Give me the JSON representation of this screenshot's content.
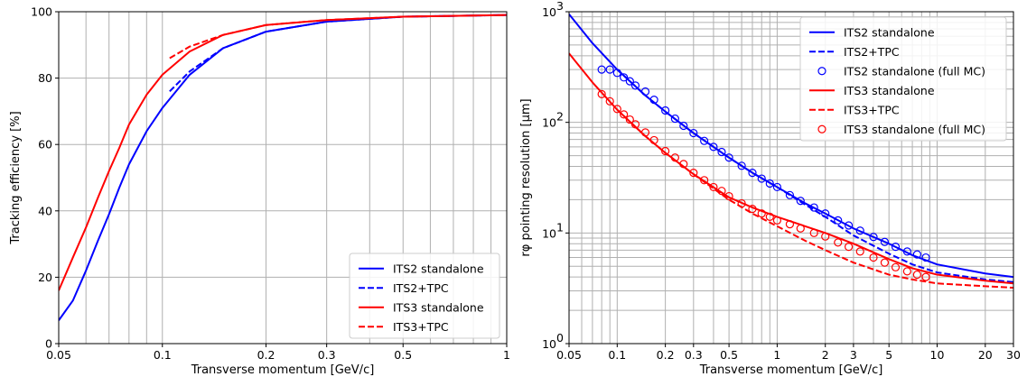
{
  "chart_data": [
    {
      "type": "line",
      "xscale": "log",
      "xlim": [
        0.05,
        1
      ],
      "ylim": [
        0,
        100
      ],
      "xlabel": "Transverse momentum [GeV/c]",
      "ylabel": "Tracking efficiency [%]",
      "xticks": [
        0.05,
        0.1,
        0.2,
        0.3,
        0.5,
        1
      ],
      "xtick_labels": [
        "0.05",
        "0.1",
        "0.2",
        "0.3",
        "0.5",
        "1"
      ],
      "yticks": [
        0,
        20,
        40,
        60,
        80,
        100
      ],
      "ytick_labels": [
        "0",
        "20",
        "40",
        "60",
        "80",
        "100"
      ],
      "grid": true,
      "legend_position": "bottom-right",
      "series": [
        {
          "name": "ITS2 standalone",
          "color": "#0000ff",
          "style": "solid",
          "x": [
            0.05,
            0.055,
            0.06,
            0.065,
            0.07,
            0.075,
            0.08,
            0.09,
            0.1,
            0.12,
            0.15,
            0.2,
            0.3,
            0.5,
            1.0
          ],
          "y": [
            7,
            13,
            22,
            31,
            39,
            47,
            54,
            64,
            71,
            81,
            89,
            94,
            97,
            98.5,
            99
          ]
        },
        {
          "name": "ITS2+TPC",
          "color": "#0000ff",
          "style": "dashed",
          "x": [
            0.105,
            0.12,
            0.15,
            0.2,
            0.3,
            0.5,
            1.0
          ],
          "y": [
            76,
            82,
            89,
            94,
            97,
            98.5,
            99
          ]
        },
        {
          "name": "ITS3 standalone",
          "color": "#ff0000",
          "style": "solid",
          "x": [
            0.05,
            0.055,
            0.06,
            0.065,
            0.07,
            0.075,
            0.08,
            0.09,
            0.1,
            0.12,
            0.15,
            0.2,
            0.3,
            0.5,
            1.0
          ],
          "y": [
            16,
            26,
            35,
            44,
            52,
            59,
            66,
            75,
            81,
            88,
            93,
            96,
            97.5,
            98.5,
            99
          ]
        },
        {
          "name": "ITS3+TPC",
          "color": "#ff0000",
          "style": "dashed",
          "x": [
            0.105,
            0.12,
            0.15,
            0.2,
            0.3,
            0.5,
            1.0
          ],
          "y": [
            86,
            89.5,
            93,
            96,
            97.5,
            98.5,
            99
          ]
        }
      ]
    },
    {
      "type": "line",
      "xscale": "log",
      "yscale": "log",
      "xlim": [
        0.05,
        30
      ],
      "ylim": [
        1,
        1000
      ],
      "xlabel": "Transverse momentum [GeV/c]",
      "ylabel": "rφ pointing resolution [µm]",
      "xticks": [
        0.05,
        0.1,
        0.2,
        0.3,
        0.5,
        1,
        2,
        3,
        5,
        10,
        20,
        30
      ],
      "xtick_labels": [
        "0.05",
        "0.1",
        "0.2",
        "0.3",
        "0.5",
        "1",
        "2",
        "3",
        "5",
        "10",
        "20",
        "30"
      ],
      "yticks": [
        1,
        10,
        100,
        1000
      ],
      "ytick_labels": [
        "10",
        "10",
        "10",
        "10"
      ],
      "ytick_exponents": [
        "0",
        "1",
        "2",
        "3"
      ],
      "grid": true,
      "legend_position": "top-right",
      "series": [
        {
          "name": "ITS2 standalone",
          "color": "#0000ff",
          "style": "solid",
          "x": [
            0.05,
            0.07,
            0.1,
            0.15,
            0.2,
            0.3,
            0.5,
            0.7,
            1,
            1.5,
            2,
            3,
            5,
            7,
            10,
            20,
            30
          ],
          "y": [
            950,
            520,
            300,
            175,
            125,
            80,
            48,
            35,
            26,
            18.5,
            15,
            11,
            8,
            6.3,
            5.2,
            4.3,
            4.0
          ]
        },
        {
          "name": "ITS2+TPC",
          "color": "#0000ff",
          "style": "dashed",
          "x": [
            0.1,
            0.15,
            0.2,
            0.3,
            0.5,
            0.7,
            1,
            1.5,
            2,
            3,
            5,
            7,
            10,
            20,
            30
          ],
          "y": [
            300,
            175,
            125,
            80,
            48,
            35,
            26,
            18,
            14,
            9.5,
            6.5,
            5.2,
            4.4,
            3.8,
            3.6
          ]
        },
        {
          "name": "ITS2 standalone (full MC)",
          "color": "#0000ff",
          "style": "markers",
          "x": [
            0.08,
            0.09,
            0.1,
            0.11,
            0.12,
            0.13,
            0.15,
            0.17,
            0.2,
            0.23,
            0.26,
            0.3,
            0.35,
            0.4,
            0.45,
            0.5,
            0.6,
            0.7,
            0.8,
            0.9,
            1.0,
            1.2,
            1.4,
            1.7,
            2.0,
            2.4,
            2.8,
            3.3,
            4.0,
            4.7,
            5.5,
            6.5,
            7.5,
            8.5
          ],
          "y": [
            300,
            300,
            280,
            255,
            235,
            215,
            190,
            160,
            128,
            108,
            93,
            80,
            68,
            60,
            54,
            48,
            40.5,
            35,
            31,
            28,
            26,
            22,
            19.5,
            17,
            15,
            13,
            11.7,
            10.5,
            9.2,
            8.3,
            7.5,
            6.8,
            6.4,
            6.0
          ]
        },
        {
          "name": "ITS3 standalone",
          "color": "#ff0000",
          "style": "solid",
          "x": [
            0.05,
            0.07,
            0.1,
            0.15,
            0.2,
            0.3,
            0.5,
            0.7,
            1,
            1.5,
            2,
            3,
            5,
            7,
            10,
            20,
            30
          ],
          "y": [
            420,
            230,
            130,
            75,
            53,
            34,
            21,
            17,
            14,
            11.5,
            10,
            8,
            5.8,
            4.8,
            4.2,
            3.7,
            3.5
          ]
        },
        {
          "name": "ITS3+TPC",
          "color": "#ff0000",
          "style": "dashed",
          "x": [
            0.1,
            0.15,
            0.2,
            0.3,
            0.5,
            0.7,
            1,
            1.5,
            2,
            3,
            5,
            7,
            10,
            20,
            30
          ],
          "y": [
            130,
            75,
            53,
            34,
            20,
            15,
            11.5,
            8.5,
            7,
            5.4,
            4.2,
            3.8,
            3.5,
            3.3,
            3.2
          ]
        },
        {
          "name": "ITS3 standalone (full MC)",
          "color": "#ff0000",
          "style": "markers",
          "x": [
            0.08,
            0.09,
            0.1,
            0.11,
            0.12,
            0.13,
            0.15,
            0.17,
            0.2,
            0.23,
            0.26,
            0.3,
            0.35,
            0.4,
            0.45,
            0.5,
            0.6,
            0.7,
            0.8,
            0.9,
            1.0,
            1.2,
            1.4,
            1.7,
            2.0,
            2.4,
            2.8,
            3.3,
            4.0,
            4.7,
            5.5,
            6.5,
            7.5,
            8.5
          ],
          "y": [
            180,
            155,
            132,
            118,
            106,
            96,
            81,
            69,
            55,
            48,
            42,
            35,
            30,
            26,
            24,
            21.5,
            18.5,
            16.5,
            15,
            14,
            13,
            12,
            11,
            10,
            9.3,
            8.2,
            7.5,
            6.8,
            6.0,
            5.4,
            4.9,
            4.5,
            4.2,
            4.0
          ]
        }
      ]
    }
  ]
}
